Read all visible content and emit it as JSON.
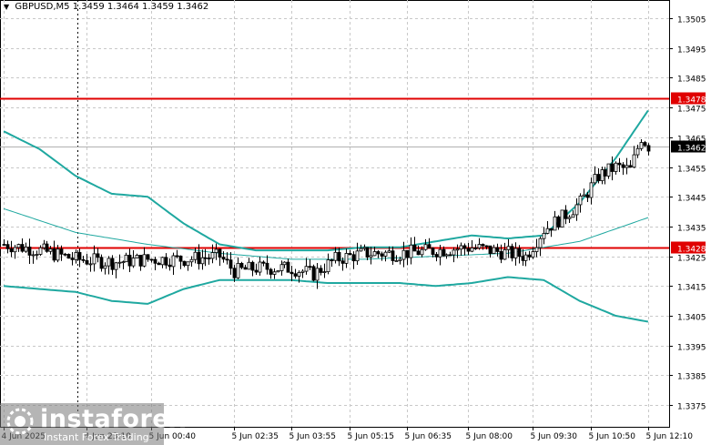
{
  "header": {
    "symbol": "GBPUSD,M5",
    "ohlc": "1.3459 1.3464 1.3459 1.3462"
  },
  "logo": {
    "brand": "instaforex",
    "tagline": "Instant Forex Trading"
  },
  "colors": {
    "background": "#ffffff",
    "candle": "#000000",
    "bands": "#1fa8a0",
    "level_line": "#e00000",
    "grid": "#c8c8c8"
  },
  "chart_data": {
    "type": "candlestick",
    "title": "",
    "y_range": [
      1.337,
      1.351
    ],
    "y_ticks": [
      "1.3505",
      "1.3495",
      "1.3485",
      "1.3475",
      "1.3465",
      "1.3455",
      "1.3445",
      "1.3435",
      "1.3425",
      "1.3415",
      "1.3405",
      "1.3395",
      "1.3385",
      "1.3375"
    ],
    "x_ticks": [
      {
        "label": "4 Jun 2025",
        "bar": 0
      },
      {
        "label": "4 Jun 23:10",
        "bar": 23
      },
      {
        "label": "5 Jun 00:40",
        "bar": 41
      },
      {
        "label": "5 Jun 02:35",
        "bar": 64
      },
      {
        "label": "5 Jun 03:55",
        "bar": 80
      },
      {
        "label": "5 Jun 05:15",
        "bar": 96
      },
      {
        "label": "5 Jun 06:35",
        "bar": 112
      },
      {
        "label": "5 Jun 08:00",
        "bar": 129
      },
      {
        "label": "5 Jun 09:30",
        "bar": 147
      },
      {
        "label": "5 Jun 10:50",
        "bar": 163
      },
      {
        "label": "5 Jun 12:10",
        "bar": 179
      }
    ],
    "last_price": "1.3462",
    "horizontal_levels": [
      {
        "label": "1.3478",
        "value": 1.3478
      },
      {
        "label": "1.3428",
        "value": 1.3428
      }
    ],
    "vertical_marker_bar": 20,
    "bar_count": 180,
    "upper_band": [
      [
        0,
        1.3467
      ],
      [
        10,
        1.3461
      ],
      [
        20,
        1.3452
      ],
      [
        30,
        1.3446
      ],
      [
        40,
        1.3445
      ],
      [
        50,
        1.3436
      ],
      [
        60,
        1.3429
      ],
      [
        70,
        1.3427
      ],
      [
        80,
        1.3427
      ],
      [
        90,
        1.3427
      ],
      [
        100,
        1.3428
      ],
      [
        110,
        1.3428
      ],
      [
        120,
        1.343
      ],
      [
        130,
        1.3432
      ],
      [
        140,
        1.3431
      ],
      [
        150,
        1.3432
      ],
      [
        160,
        1.3443
      ],
      [
        170,
        1.3458
      ],
      [
        179,
        1.3474
      ]
    ],
    "middle_ma": [
      [
        0,
        1.3441
      ],
      [
        20,
        1.3433
      ],
      [
        40,
        1.3429
      ],
      [
        60,
        1.3426
      ],
      [
        80,
        1.3424
      ],
      [
        100,
        1.3424
      ],
      [
        120,
        1.3425
      ],
      [
        140,
        1.3426
      ],
      [
        160,
        1.343
      ],
      [
        179,
        1.3438
      ]
    ],
    "lower_band": [
      [
        0,
        1.3415
      ],
      [
        10,
        1.3414
      ],
      [
        20,
        1.3413
      ],
      [
        30,
        1.341
      ],
      [
        40,
        1.3409
      ],
      [
        50,
        1.3414
      ],
      [
        60,
        1.3417
      ],
      [
        70,
        1.3417
      ],
      [
        80,
        1.3417
      ],
      [
        90,
        1.3416
      ],
      [
        100,
        1.3416
      ],
      [
        110,
        1.3416
      ],
      [
        120,
        1.3415
      ],
      [
        130,
        1.3416
      ],
      [
        140,
        1.3418
      ],
      [
        150,
        1.3417
      ],
      [
        160,
        1.341
      ],
      [
        170,
        1.3405
      ],
      [
        179,
        1.3403
      ]
    ],
    "close_path": [
      [
        0,
        1.3429
      ],
      [
        10,
        1.3427
      ],
      [
        20,
        1.3424
      ],
      [
        30,
        1.3423
      ],
      [
        40,
        1.3424
      ],
      [
        50,
        1.3424
      ],
      [
        60,
        1.3425
      ],
      [
        64,
        1.342
      ],
      [
        70,
        1.3421
      ],
      [
        80,
        1.3421
      ],
      [
        86,
        1.3419
      ],
      [
        92,
        1.3424
      ],
      [
        100,
        1.3426
      ],
      [
        110,
        1.3426
      ],
      [
        120,
        1.3427
      ],
      [
        130,
        1.3428
      ],
      [
        140,
        1.3426
      ],
      [
        145,
        1.3425
      ],
      [
        150,
        1.3434
      ],
      [
        155,
        1.3438
      ],
      [
        160,
        1.3443
      ],
      [
        165,
        1.3452
      ],
      [
        170,
        1.3455
      ],
      [
        174,
        1.3454
      ],
      [
        177,
        1.3465
      ],
      [
        179,
        1.3462
      ]
    ]
  }
}
